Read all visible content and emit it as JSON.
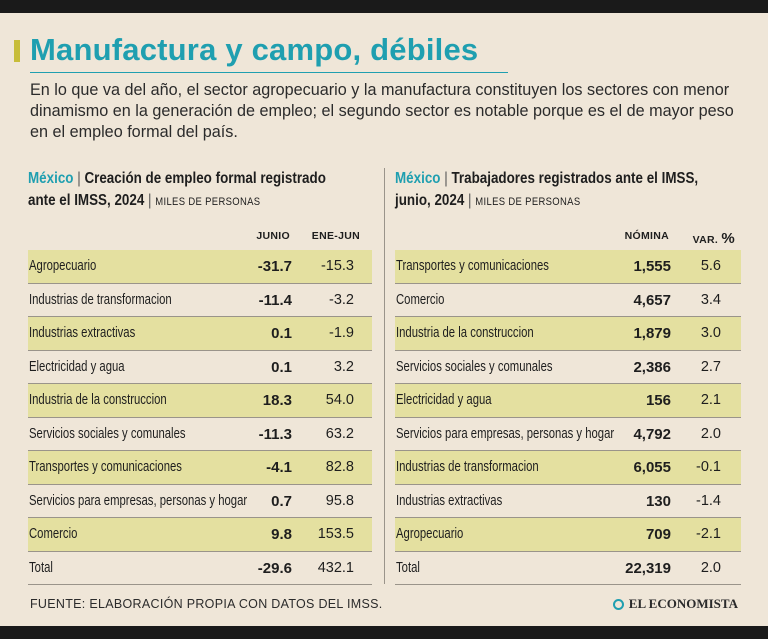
{
  "title": "Manufactura y campo, débiles",
  "subtitle": "En lo que va del año, el sector agropecuario y la manufactura constituyen los sectores con menor dinamismo en la generación de empleo; el segundo sector es notable porque es el de mayor peso en el empleo formal del país.",
  "source": "FUENTE: ELABORACIÓN PROPIA CON DATOS DEL IMSS.",
  "brand": "EL ECONOMISTA",
  "colors": {
    "accent": "#1f9fb0",
    "highlight": "#e4e0a0",
    "bar": "#c7bd3a"
  },
  "chart_data": [
    {
      "type": "table",
      "country": "México",
      "title_line1": "Creación de empleo formal registrado",
      "title_line2": "ante el IMSS, 2024",
      "unit": "MILES DE PERSONAS",
      "columns": [
        "JUNIO",
        "ENE-JUN"
      ],
      "rows": [
        {
          "category": "Agropecuario",
          "v1": "-31.7",
          "v2": "-15.3"
        },
        {
          "category": "Industrias de  transformacion",
          "v1": "-11.4",
          "v2": "-3.2"
        },
        {
          "category": "Industrias extractivas",
          "v1": "0.1",
          "v2": "-1.9"
        },
        {
          "category": "Electricidad y agua",
          "v1": "0.1",
          "v2": "3.2"
        },
        {
          "category": "Industria de  la construccion",
          "v1": "18.3",
          "v2": "54.0"
        },
        {
          "category": "Servicios sociales y comunales",
          "v1": "-11.3",
          "v2": "63.2"
        },
        {
          "category": "Transportes y comunicaciones",
          "v1": "-4.1",
          "v2": "82.8"
        },
        {
          "category": "Servicios para empresas, personas y hogar",
          "v1": "0.7",
          "v2": "95.8"
        },
        {
          "category": "Comercio",
          "v1": "9.8",
          "v2": "153.5"
        },
        {
          "category": "Total",
          "v1": "-29.6",
          "v2": "432.1"
        }
      ]
    },
    {
      "type": "table",
      "country": "México",
      "title_line1": "Trabajadores registrados ante el IMSS,",
      "title_line2": "junio, 2024",
      "unit": "MILES DE PERSONAS",
      "columns": [
        "NÓMINA",
        "VAR.",
        "%"
      ],
      "rows": [
        {
          "category": "Transportes y comunicaciones",
          "v1": "1,555",
          "v2": "5.6"
        },
        {
          "category": "Comercio",
          "v1": "4,657",
          "v2": "3.4"
        },
        {
          "category": "Industria de  la construccion",
          "v1": "1,879",
          "v2": "3.0"
        },
        {
          "category": "Servicios sociales y comunales",
          "v1": "2,386",
          "v2": "2.7"
        },
        {
          "category": "Electricidad y agua",
          "v1": "156",
          "v2": "2.1"
        },
        {
          "category": "Servicios para empresas, personas y hogar",
          "v1": "4,792",
          "v2": "2.0"
        },
        {
          "category": "Industrias de  transformacion",
          "v1": "6,055",
          "v2": "-0.1"
        },
        {
          "category": "Industrias extractivas",
          "v1": "130",
          "v2": "-1.4"
        },
        {
          "category": "Agropecuario",
          "v1": "709",
          "v2": "-2.1"
        },
        {
          "category": "Total",
          "v1": "22,319",
          "v2": "2.0"
        }
      ]
    }
  ]
}
